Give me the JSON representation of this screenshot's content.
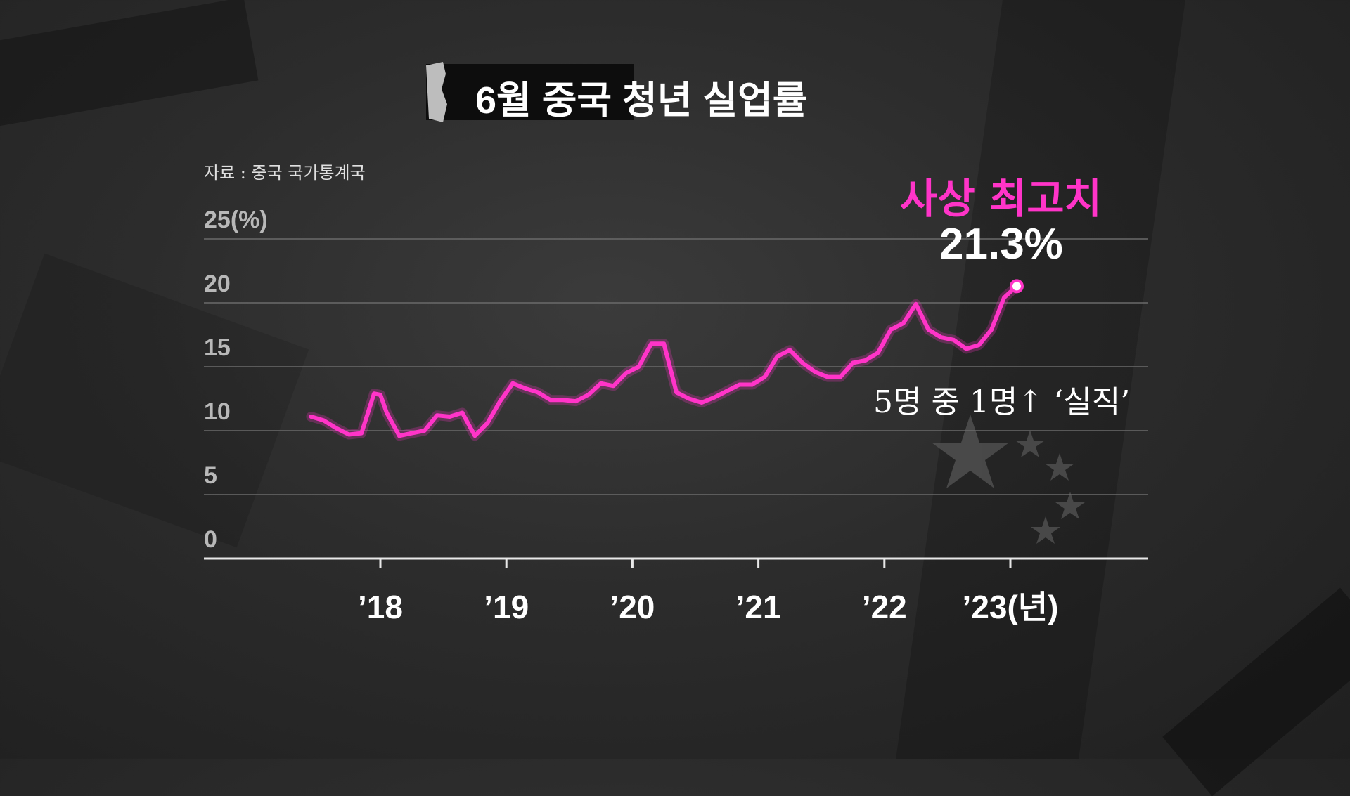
{
  "title": "6월 중국 청년 실업률",
  "source": "자료 : 중국 국가통계국",
  "annotations": {
    "record_label": "사상 최고치",
    "record_value": "21.3%",
    "note": "5명 중 1명↑ ‘실직’"
  },
  "colors": {
    "line": "#ff34c8",
    "grid": "#6a6a6a",
    "axis": "#e8e8e8"
  },
  "chart_data": {
    "type": "line",
    "title": "6월 중국 청년 실업률",
    "ylim": [
      0,
      25
    ],
    "y_ticks": [
      "0",
      "5",
      "10",
      "15",
      "20",
      "25(%)"
    ],
    "y_tick_values": [
      0,
      5,
      10,
      15,
      20,
      25
    ],
    "x_tick_labels": [
      "’18",
      "’19",
      "’20",
      "’21",
      "’22",
      "’23(년)"
    ],
    "x_tick_values": [
      2018,
      2019,
      2020,
      2021,
      2022,
      2023
    ],
    "grid": true,
    "series": [
      {
        "x": [
          2017.45,
          2017.55,
          2017.65,
          2017.75,
          2017.85,
          2017.95,
          2018.0,
          2018.05,
          2018.15,
          2018.25,
          2018.35,
          2018.45,
          2018.55,
          2018.65,
          2018.75,
          2018.85,
          2018.95,
          2019.05,
          2019.15,
          2019.25,
          2019.35,
          2019.45,
          2019.55,
          2019.65,
          2019.75,
          2019.85,
          2019.95,
          2020.05,
          2020.15,
          2020.25,
          2020.35,
          2020.45,
          2020.55,
          2020.65,
          2020.75,
          2020.85,
          2020.95,
          2021.05,
          2021.15,
          2021.25,
          2021.35,
          2021.45,
          2021.55,
          2021.65,
          2021.75,
          2021.85,
          2021.95,
          2022.05,
          2022.15,
          2022.25,
          2022.35,
          2022.45,
          2022.55,
          2022.65,
          2022.75,
          2022.85,
          2022.95,
          2023.05
        ],
        "values": [
          11.1,
          10.8,
          10.2,
          9.7,
          9.8,
          12.9,
          12.8,
          11.4,
          9.6,
          9.8,
          10.0,
          11.2,
          11.1,
          11.4,
          9.6,
          10.6,
          12.3,
          13.7,
          13.3,
          13.0,
          12.4,
          12.4,
          12.3,
          12.8,
          13.7,
          13.5,
          14.5,
          15.0,
          16.8,
          16.8,
          13.0,
          12.5,
          12.2,
          12.6,
          13.1,
          13.6,
          13.6,
          14.2,
          15.8,
          16.3,
          15.3,
          14.6,
          14.2,
          14.2,
          15.3,
          15.5,
          16.1,
          17.9,
          18.4,
          19.9,
          17.9,
          17.3,
          17.1,
          16.4,
          16.7,
          17.9,
          20.4,
          21.3
        ]
      }
    ]
  }
}
